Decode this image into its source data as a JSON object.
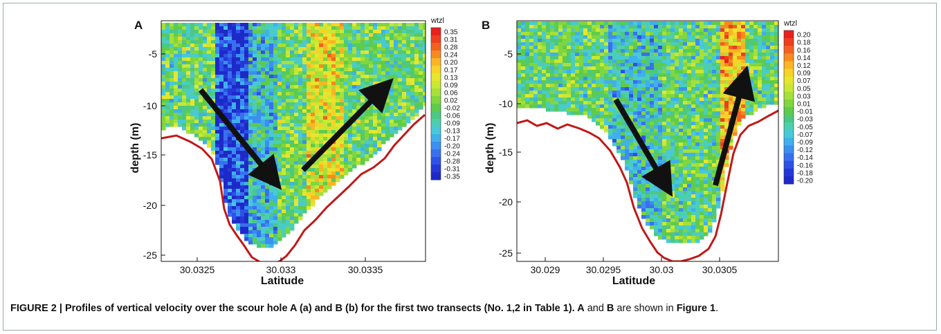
{
  "panels": [
    {
      "label": "A",
      "ylabel": "depth (m)",
      "xlabel": "Latitude",
      "yticks": [
        "-5",
        "-10",
        "-15",
        "-20",
        "-25"
      ],
      "xticks": [
        "30.0325",
        "30.033",
        "30.0335"
      ],
      "legend_title": "wtzl",
      "legend_values": [
        "0.35",
        "0.31",
        "0.28",
        "0.24",
        "0.20",
        "0.17",
        "0.13",
        "0.09",
        "0.06",
        "0.02",
        "-0.02",
        "-0.06",
        "-0.09",
        "-0.13",
        "-0.17",
        "-0.20",
        "-0.24",
        "-0.28",
        "-0.31",
        "-0.35"
      ]
    },
    {
      "label": "B",
      "ylabel": "depth (m)",
      "xlabel": "Latitude",
      "yticks": [
        "-5",
        "-10",
        "-15",
        "-20",
        "-25"
      ],
      "xticks": [
        "30.029",
        "30.0295",
        "30.03",
        "30.0305"
      ],
      "legend_title": "wtzl",
      "legend_values": [
        "0.20",
        "0.18",
        "0.16",
        "0.14",
        "0.12",
        "0.09",
        "0.07",
        "0.05",
        "0.03",
        "0.01",
        "-0.01",
        "-0.03",
        "-0.05",
        "-0.07",
        "-0.09",
        "-0.12",
        "-0.14",
        "-0.16",
        "-0.18",
        "-0.20"
      ]
    }
  ],
  "colors": {
    "legend": [
      "#e8201c",
      "#ef3d1e",
      "#f4611f",
      "#f88a20",
      "#fbb423",
      "#f7d327",
      "#e6e62d",
      "#c8e834",
      "#a6e03a",
      "#7fd63e",
      "#5ecb4c",
      "#4cc882",
      "#4ccfb1",
      "#48c9d9",
      "#3fb0ec",
      "#3a8ff0",
      "#3a6ff0",
      "#2e52e6",
      "#2438d8",
      "#1e2ac8"
    ],
    "bed_line": "#c01818",
    "arrow": "#111111"
  },
  "caption": {
    "lead": "FIGURE 2 | Profiles of vertical velocity over the scour hole A (a) and B (b) for the first two transects (No. 1,2 in ",
    "table_ref": "Table 1",
    "mid": "). ",
    "a": "A",
    "and": " and ",
    "b": "B",
    "end": " are shown in ",
    "fig_ref": "Figure 1",
    "stop": "."
  }
}
